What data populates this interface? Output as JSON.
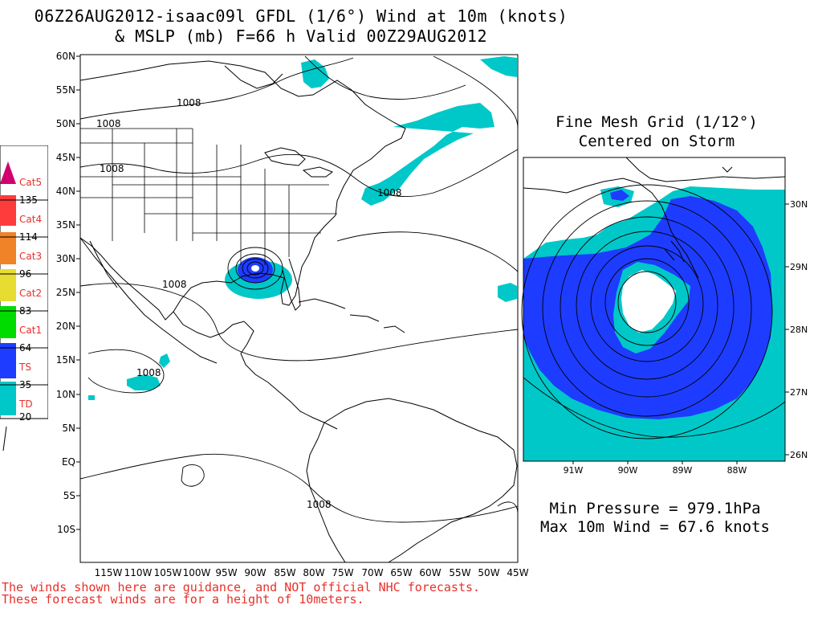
{
  "title": {
    "line1": "06Z26AUG2012-isaac09l GFDL (1/6°) Wind at 10m (knots)",
    "line2": "& MSLP (mb) F=66 h Valid 00Z29AUG2012"
  },
  "main_map": {
    "lat_labels": [
      "60N",
      "55N",
      "50N",
      "45N",
      "40N",
      "35N",
      "30N",
      "25N",
      "20N",
      "15N",
      "10N",
      "5N",
      "EQ",
      "5S",
      "10S"
    ],
    "lon_labels": [
      "115W",
      "110W",
      "105W",
      "100W",
      "95W",
      "90W",
      "85W",
      "80W",
      "75W",
      "70W",
      "65W",
      "60W",
      "55W",
      "50W",
      "45W"
    ],
    "isobar_labels": [
      "1008",
      "1008",
      "1008",
      "1008",
      "1008",
      "1008",
      "1008"
    ]
  },
  "legend": {
    "categories": [
      {
        "name": "Cat5",
        "color": "#d0006f"
      },
      {
        "name": "Cat4",
        "color": "#ff3c3c"
      },
      {
        "name": "Cat3",
        "color": "#f08228"
      },
      {
        "name": "Cat2",
        "color": "#e6dc32"
      },
      {
        "name": "Cat1",
        "color": "#00dc00"
      },
      {
        "name": "TS",
        "color": "#1e3cff"
      },
      {
        "name": "TD",
        "color": "#00c8c8"
      }
    ],
    "thresholds": [
      "135",
      "114",
      "96",
      "83",
      "64",
      "35",
      "20"
    ]
  },
  "inset": {
    "title_line1": "Fine Mesh Grid (1/12°)",
    "title_line2": "Centered on Storm",
    "lat_labels": [
      "30N",
      "29N",
      "28N",
      "27N",
      "26N"
    ],
    "lon_labels": [
      "91W",
      "90W",
      "89W",
      "88W"
    ]
  },
  "stats": {
    "min_pressure": "Min Pressure = 979.1hPa",
    "max_wind": "Max 10m Wind = 67.6 knots"
  },
  "disclaimer": {
    "line1": "The winds shown here are guidance, and NOT official NHC forecasts.",
    "line2": "These forecast winds are for a height of 10meters."
  },
  "colors": {
    "td": "#00c8c8",
    "ts": "#1e3cff",
    "text_warning": "#e8302a"
  }
}
